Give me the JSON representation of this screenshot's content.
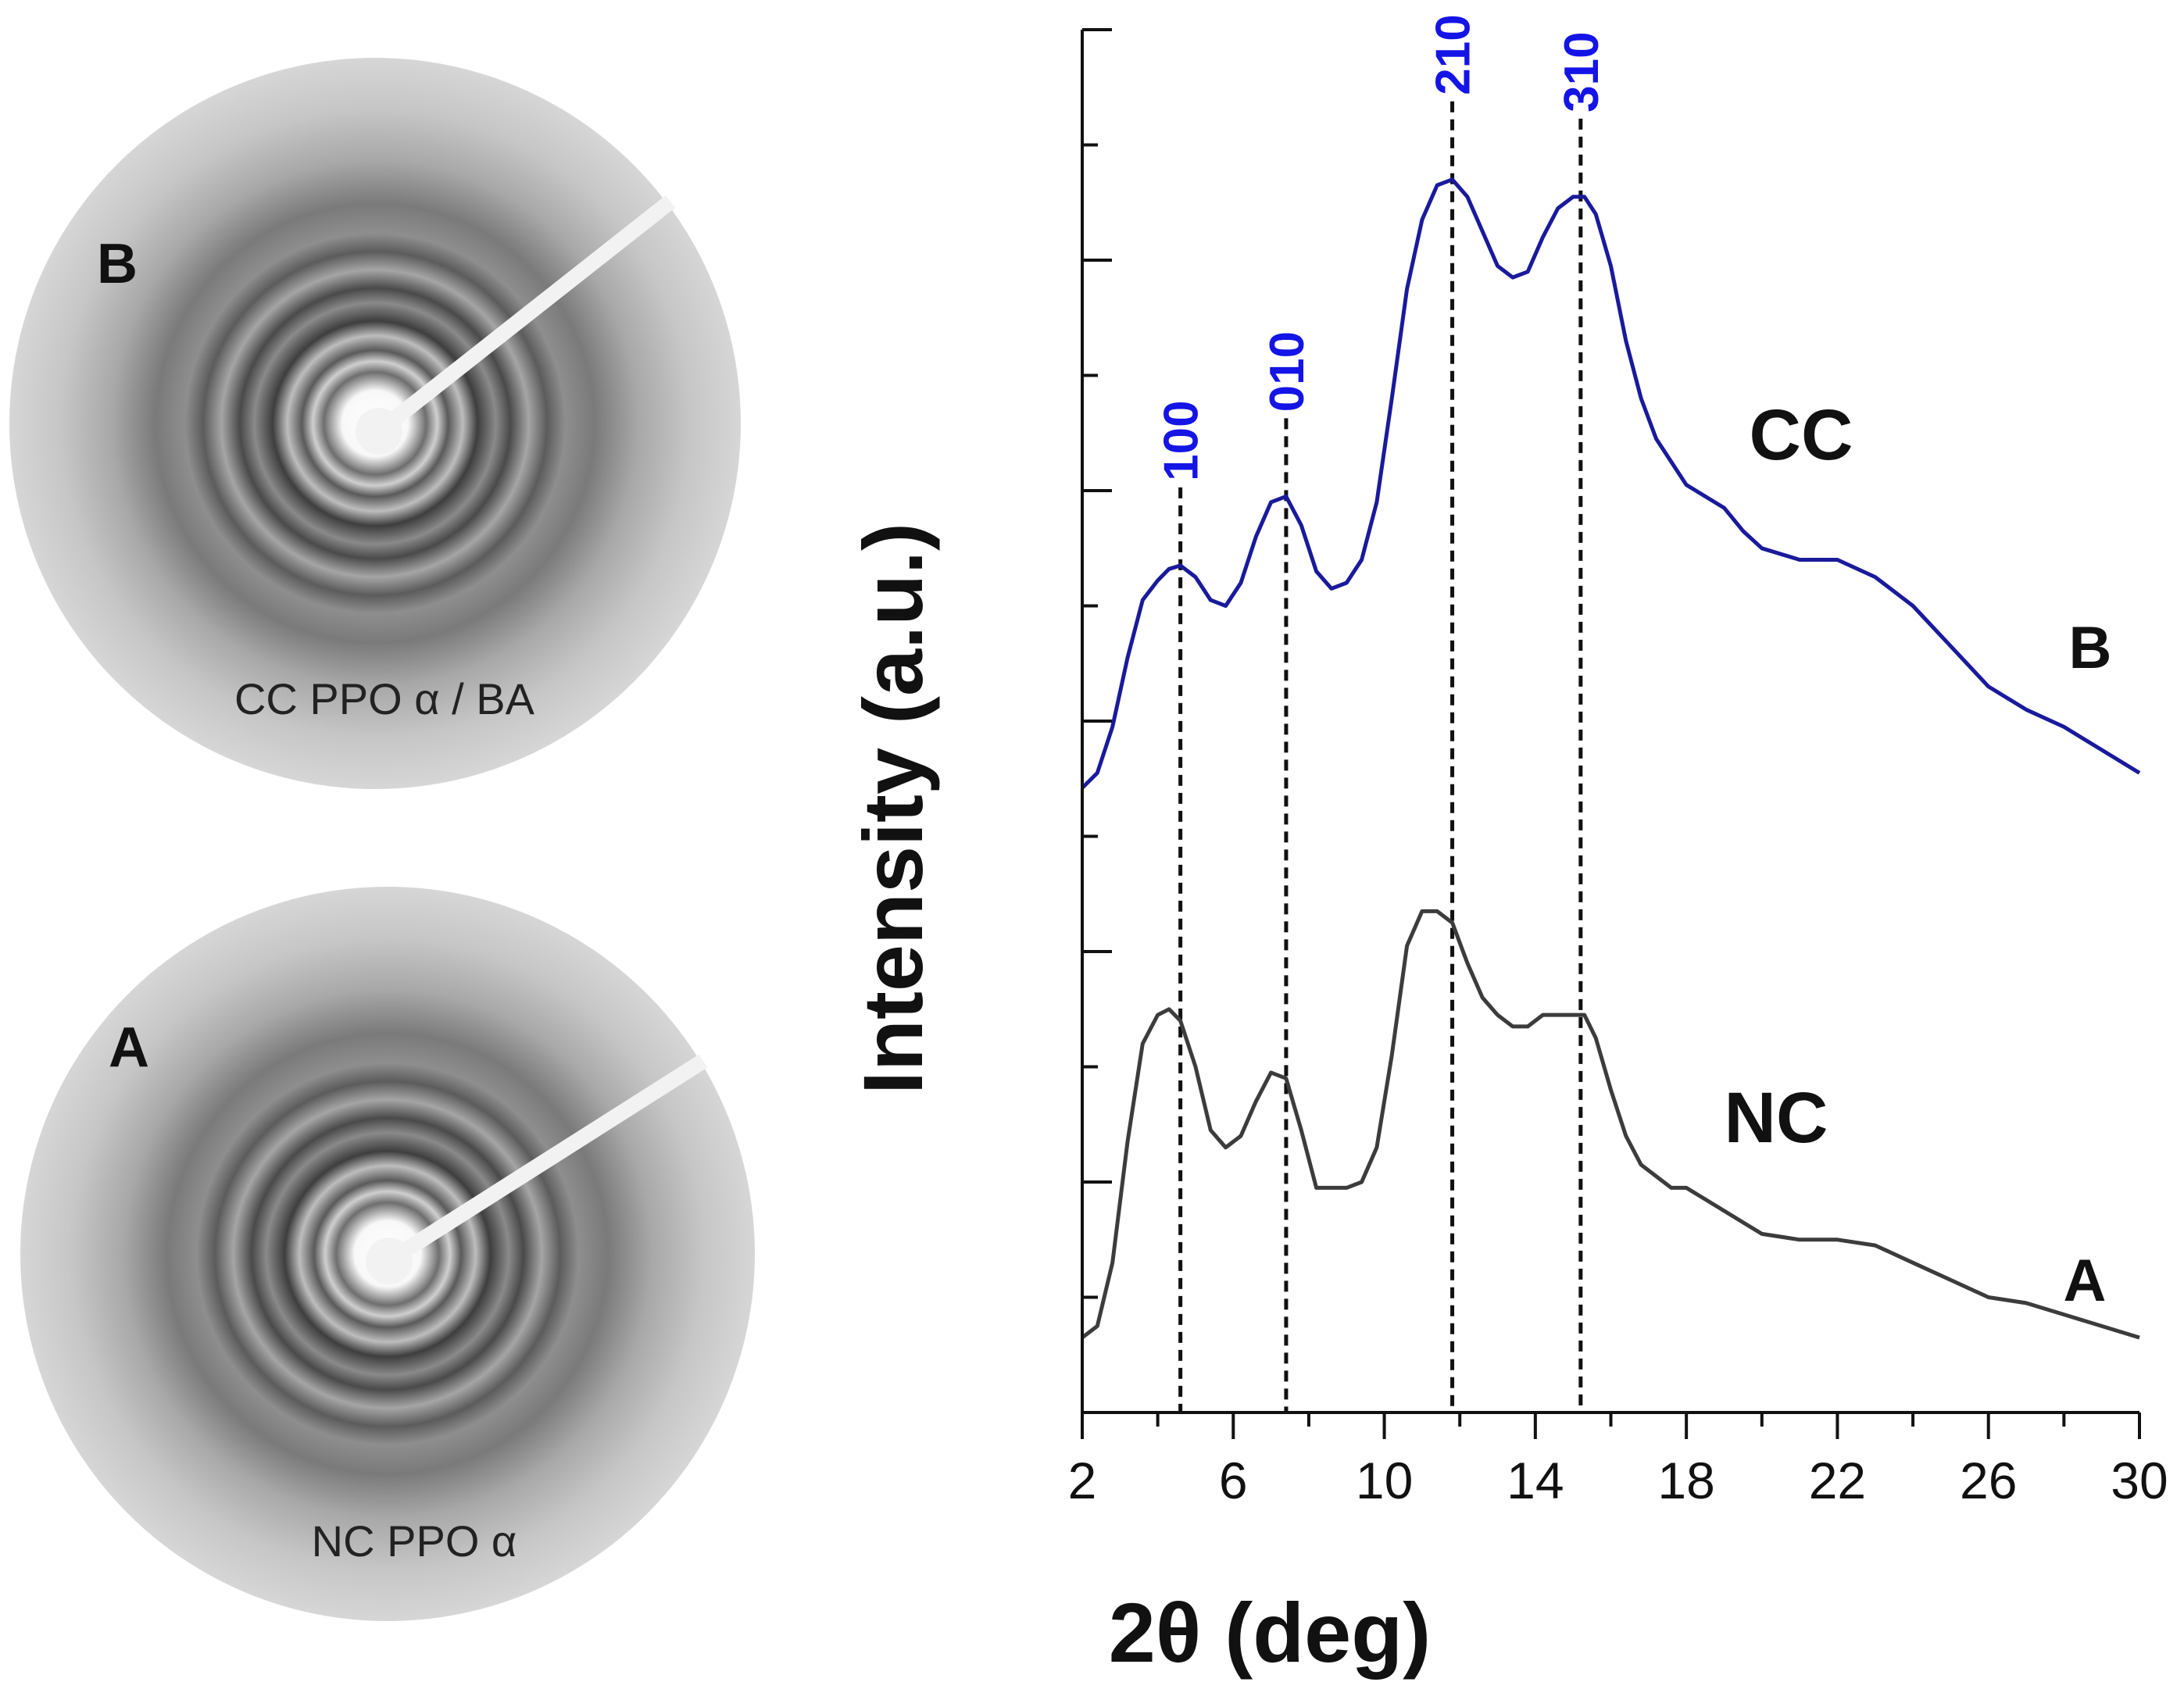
{
  "patterns": [
    {
      "label": "B",
      "caption": "CC PPO α / BA"
    },
    {
      "label": "A",
      "caption": "NC PPO α"
    }
  ],
  "chart_data": {
    "type": "line",
    "title": "",
    "xlabel": "2θ (deg)",
    "ylabel": "Intensity (a.u.)",
    "xlim": [
      2,
      30
    ],
    "ylim": [
      0,
      120
    ],
    "xticks": [
      2,
      6,
      10,
      14,
      18,
      22,
      26,
      30
    ],
    "y_tick_labels_shown": false,
    "series": [
      {
        "name": "CC",
        "end_label": "B",
        "color": "#1a1a9c",
        "x": [
          2.0,
          2.4,
          2.8,
          3.2,
          3.6,
          4.0,
          4.3,
          4.6,
          5.0,
          5.4,
          5.8,
          6.2,
          6.6,
          7.0,
          7.4,
          7.8,
          8.2,
          8.6,
          9.0,
          9.4,
          9.8,
          10.2,
          10.6,
          11.0,
          11.4,
          11.8,
          12.2,
          12.6,
          13.0,
          13.4,
          13.8,
          14.2,
          14.6,
          15.0,
          15.3,
          15.6,
          16.0,
          16.4,
          16.8,
          17.2,
          17.6,
          18.0,
          18.5,
          19.0,
          19.5,
          20.0,
          21.0,
          22.0,
          23.0,
          24.0,
          25.0,
          26.0,
          27.0,
          28.0,
          29.0,
          30.0
        ],
        "y": [
          54.2,
          55.5,
          59.5,
          65.5,
          70.5,
          72.2,
          73.2,
          73.5,
          72.5,
          70.5,
          70.0,
          72.0,
          76.0,
          79.0,
          79.5,
          77.0,
          73.0,
          71.5,
          72.0,
          74.0,
          79.0,
          88.0,
          97.5,
          103.5,
          106.5,
          107.0,
          105.5,
          102.5,
          99.5,
          98.5,
          99.0,
          102.0,
          104.5,
          105.5,
          105.5,
          104.0,
          99.5,
          93.0,
          88.0,
          84.5,
          82.5,
          80.5,
          79.5,
          78.5,
          76.5,
          75.0,
          74.0,
          74.0,
          72.5,
          70.0,
          66.5,
          63.0,
          61.0,
          59.5,
          57.5,
          55.5
        ]
      },
      {
        "name": "NC",
        "end_label": "A",
        "color": "#3c3c3c",
        "x": [
          2.0,
          2.4,
          2.8,
          3.2,
          3.6,
          4.0,
          4.3,
          4.6,
          5.0,
          5.4,
          5.8,
          6.2,
          6.6,
          7.0,
          7.4,
          7.8,
          8.2,
          8.6,
          9.0,
          9.4,
          9.8,
          10.2,
          10.6,
          11.0,
          11.4,
          11.8,
          12.2,
          12.6,
          13.0,
          13.4,
          13.8,
          14.2,
          14.6,
          15.0,
          15.3,
          15.6,
          16.0,
          16.4,
          16.8,
          17.2,
          17.6,
          18.0,
          18.5,
          19.0,
          19.5,
          20.0,
          21.0,
          22.0,
          23.0,
          24.0,
          25.0,
          26.0,
          27.0,
          28.0,
          29.0,
          30.0
        ],
        "y": [
          6.5,
          7.5,
          13.0,
          23.5,
          32.0,
          34.5,
          35.0,
          34.0,
          30.0,
          24.5,
          23.0,
          24.0,
          27.0,
          29.5,
          29.0,
          24.5,
          19.5,
          19.5,
          19.5,
          20.0,
          23.0,
          31.0,
          40.5,
          43.5,
          43.5,
          42.5,
          39.0,
          36.0,
          34.5,
          33.5,
          33.5,
          34.5,
          34.5,
          34.5,
          34.5,
          32.5,
          28.0,
          24.0,
          21.5,
          20.5,
          19.5,
          19.5,
          18.5,
          17.5,
          16.5,
          15.5,
          15.0,
          15.0,
          14.5,
          13.0,
          11.5,
          10.0,
          9.5,
          8.5,
          7.5,
          6.5
        ]
      }
    ],
    "series_labels": [
      "CC",
      "NC"
    ],
    "reflections": [
      {
        "label": "100",
        "x": 4.6
      },
      {
        "label": "010",
        "x": 7.4
      },
      {
        "label": "210",
        "x": 11.8
      },
      {
        "label": "310",
        "x": 15.2
      }
    ],
    "reflection_color": "#1414e6"
  }
}
